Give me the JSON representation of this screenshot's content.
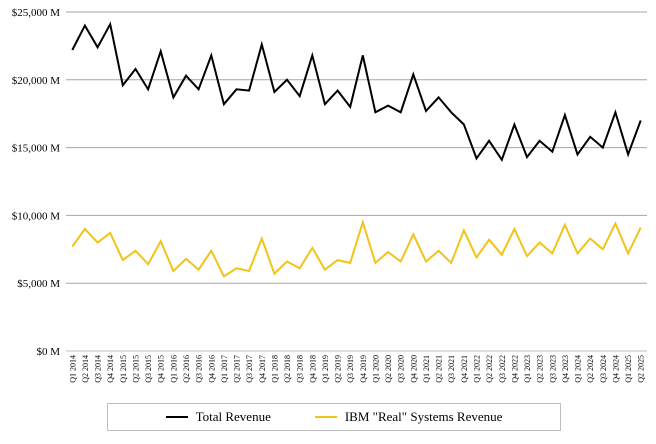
{
  "chart_data": {
    "type": "line",
    "x": [
      "Q1 2014",
      "Q2 2014",
      "Q3 2014",
      "Q4 2014",
      "Q1 2015",
      "Q2 2015",
      "Q3 2015",
      "Q4 2015",
      "Q1 2016",
      "Q2 2016",
      "Q3 2016",
      "Q4 2016",
      "Q1 2017",
      "Q2 2017",
      "Q3 2017",
      "Q4 2017",
      "Q1 2018",
      "Q2 2018",
      "Q3 2018",
      "Q4 2018",
      "Q1 2019",
      "Q2 2019",
      "Q3 2019",
      "Q4 2019",
      "Q1 2020",
      "Q2 2020",
      "Q3 2020",
      "Q4 2020",
      "Q1 2021",
      "Q2 2021",
      "Q3 2021",
      "Q4 2021",
      "Q1 2022",
      "Q2 2022",
      "Q3 2022",
      "Q4 2022",
      "Q1 2023",
      "Q2 2023",
      "Q3 2023",
      "Q4 2023",
      "Q1 2024",
      "Q2 2024",
      "Q3 2024",
      "Q4 2024",
      "Q1 2025",
      "Q2 2025"
    ],
    "series": [
      {
        "name": "Total Revenue",
        "color": "#000000",
        "values": [
          22200,
          24000,
          22400,
          24100,
          19600,
          20800,
          19300,
          22100,
          18700,
          20300,
          19300,
          21800,
          18200,
          19300,
          19200,
          22600,
          19100,
          20000,
          18800,
          21800,
          18200,
          19200,
          18000,
          21800,
          17600,
          18100,
          17600,
          20400,
          17700,
          18700,
          17600,
          16700,
          14200,
          15500,
          14100,
          16700,
          14300,
          15500,
          14700,
          17400,
          14500,
          15800,
          15000,
          17600,
          14500,
          17000
        ]
      },
      {
        "name": "IBM \"Real\" Systems Revenue",
        "color": "#f2c318",
        "values": [
          7700,
          9000,
          8000,
          8700,
          6700,
          7400,
          6400,
          8100,
          5900,
          6800,
          6000,
          7400,
          5500,
          6100,
          5900,
          8300,
          5700,
          6600,
          6100,
          7600,
          6000,
          6700,
          6500,
          9500,
          6500,
          7300,
          6600,
          8600,
          6600,
          7400,
          6500,
          8900,
          6900,
          8200,
          7100,
          9000,
          7000,
          8000,
          7200,
          9300,
          7200,
          8300,
          7500,
          9400,
          7200,
          9100
        ]
      }
    ],
    "y_tick_labels": [
      "$0 M",
      "$5,000 M",
      "$10,000 M",
      "$15,000 M",
      "$20,000 M",
      "$25,000 M"
    ],
    "ylim": [
      0,
      25000
    ],
    "grid": true,
    "legend_position": "bottom"
  }
}
